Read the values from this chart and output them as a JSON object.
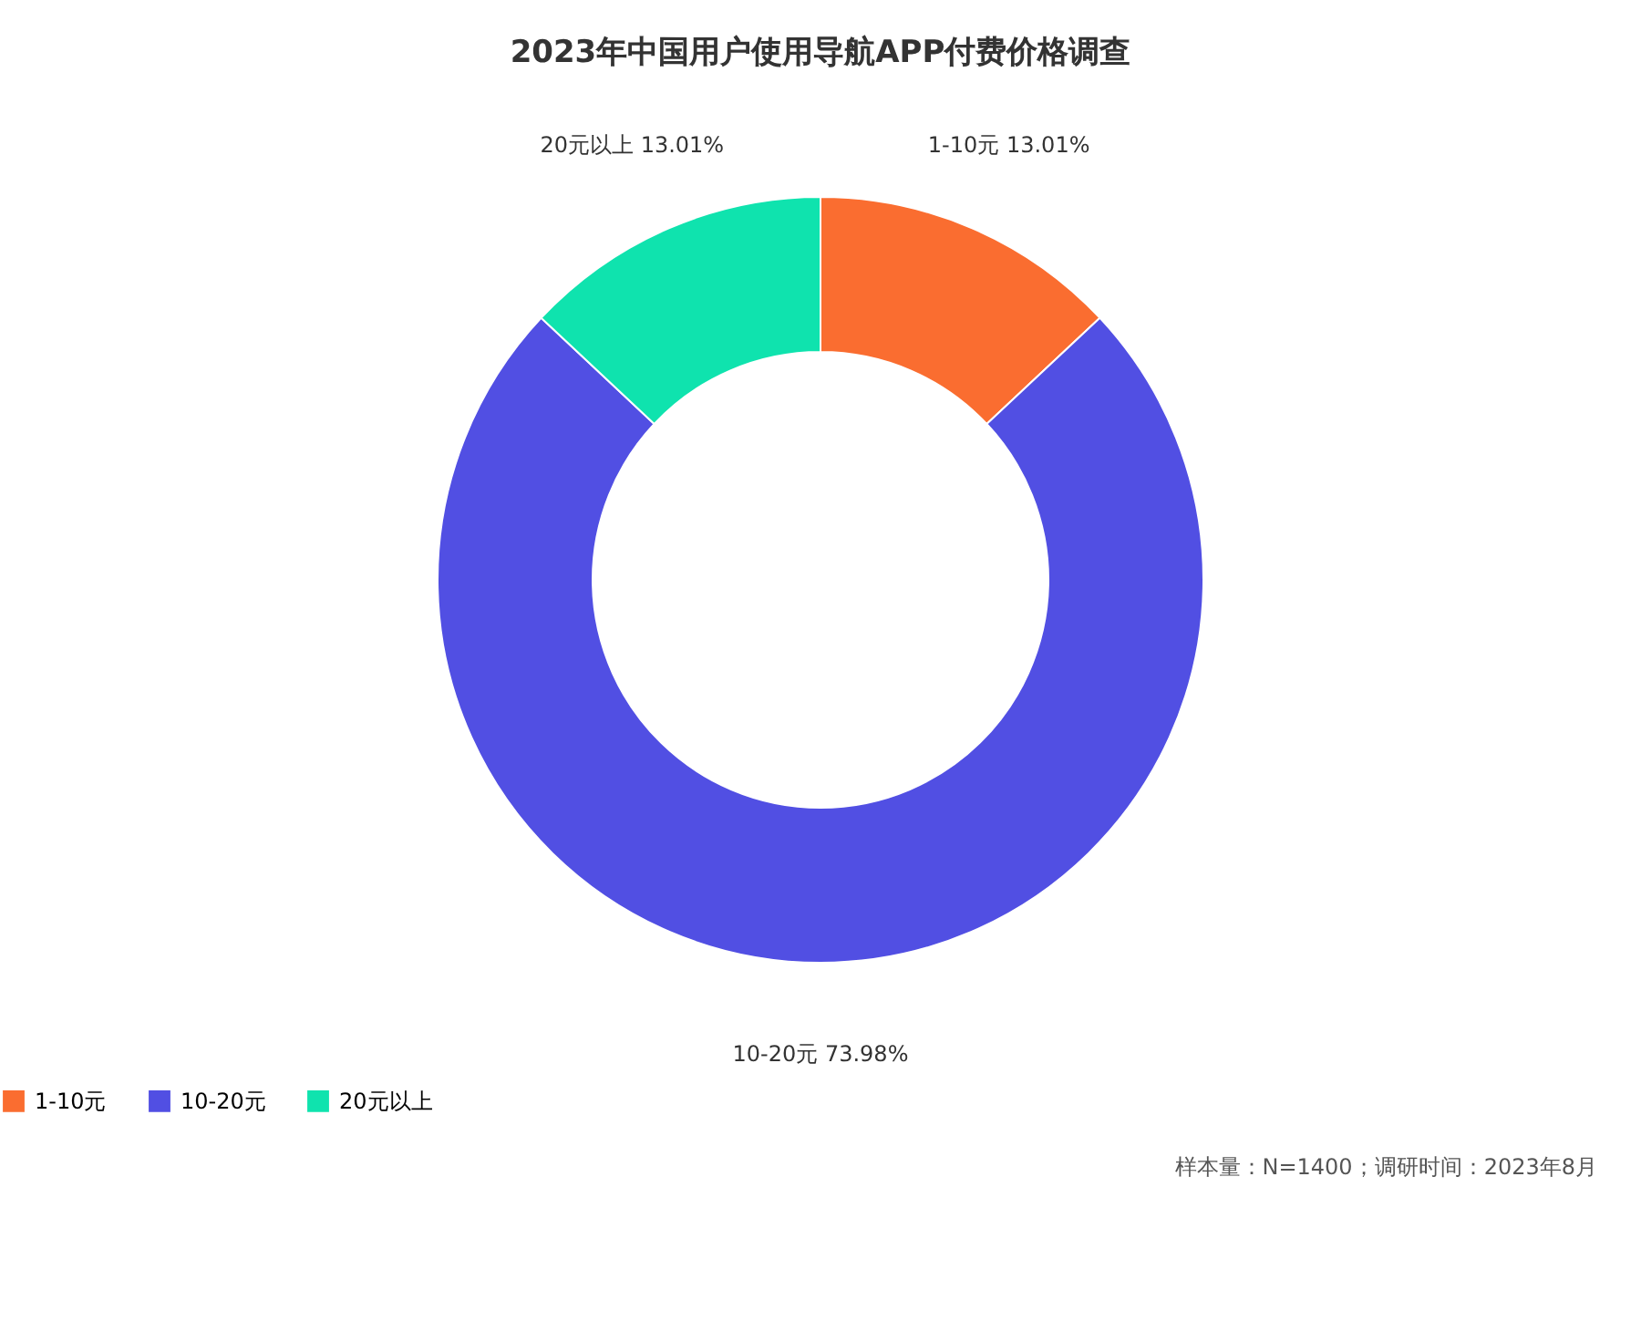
{
  "chart_data": {
    "type": "donut",
    "title": "2023年中国用户使用导航APP付费价格调查",
    "categories": [
      "1-10元",
      "10-20元",
      "20元以上"
    ],
    "values": [
      13.01,
      73.98,
      13.01
    ],
    "value_labels": [
      "13.01%",
      "73.98%",
      "13.01%"
    ],
    "colors": [
      "#fa6d30",
      "#514fe3",
      "#0fe3ae"
    ],
    "legend": "bottom",
    "annotations": [
      "样本量：N=1400；调研时间：2023年8月"
    ]
  }
}
